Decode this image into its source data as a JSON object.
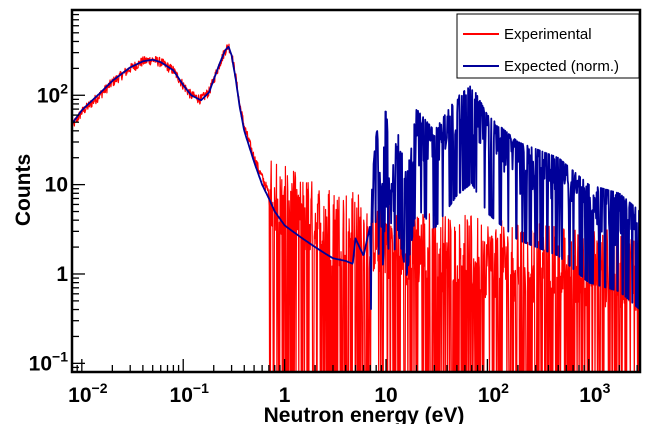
{
  "chart_data": {
    "type": "line",
    "title": "",
    "xlabel": "Neutron energy (eV)",
    "ylabel": "Counts",
    "xscale": "log",
    "yscale": "log",
    "xlim": [
      0.008,
      3200
    ],
    "ylim": [
      0.08,
      900
    ],
    "grid": false,
    "legend_position": "top-right",
    "x_ticks": [
      {
        "base": "10",
        "exp": "−2",
        "value": 0.01
      },
      {
        "base": "10",
        "exp": "−1",
        "value": 0.1
      },
      {
        "base": "1",
        "exp": "",
        "value": 1
      },
      {
        "base": "10",
        "exp": "",
        "value": 10
      },
      {
        "base": "10",
        "exp": "2",
        "value": 100
      },
      {
        "base": "10",
        "exp": "3",
        "value": 1000
      }
    ],
    "y_ticks": [
      {
        "base": "10",
        "exp": "−1",
        "value": 0.1
      },
      {
        "base": "1",
        "exp": "",
        "value": 1
      },
      {
        "base": "10",
        "exp": "",
        "value": 10
      },
      {
        "base": "10",
        "exp": "2",
        "value": 100
      }
    ],
    "series": [
      {
        "name": "Experimental",
        "color": "#ff0000",
        "style": "noisy-histogram",
        "x": [
          0.008,
          0.01,
          0.015,
          0.02,
          0.03,
          0.04,
          0.05,
          0.06,
          0.08,
          0.1,
          0.12,
          0.15,
          0.18,
          0.2,
          0.23,
          0.26,
          0.28,
          0.3,
          0.33,
          0.36,
          0.4,
          0.5,
          0.6,
          0.7,
          0.8,
          1.0,
          1.2,
          1.5,
          2.0,
          2.5,
          3.0,
          4.0,
          4.7,
          5.0,
          6.0,
          7.0,
          7.5,
          8.0,
          9.0,
          10.0,
          11.0,
          13.0,
          16.0,
          20.0,
          30.0,
          50.0,
          70.0,
          100.0,
          200.0,
          500.0,
          1000.0,
          2000.0,
          3200.0
        ],
        "y": [
          45,
          65,
          100,
          140,
          200,
          240,
          250,
          235,
          190,
          130,
          100,
          90,
          110,
          150,
          230,
          320,
          360,
          290,
          160,
          80,
          45,
          20,
          12,
          8,
          5,
          3.8,
          3.4,
          3.0,
          2.6,
          2.4,
          2.2,
          2.1,
          2.0,
          2.0,
          1.9,
          1.8,
          1.8,
          1.8,
          1.7,
          1.7,
          1.6,
          1.5,
          1.4,
          1.3,
          1.2,
          1.1,
          1.1,
          1.0,
          0.9,
          0.85,
          0.8,
          0.75,
          0.7
        ]
      },
      {
        "name": "Expected (norm.)",
        "color": "#000099",
        "style": "line",
        "x": [
          0.008,
          0.01,
          0.015,
          0.02,
          0.03,
          0.04,
          0.05,
          0.06,
          0.08,
          0.1,
          0.12,
          0.15,
          0.18,
          0.2,
          0.23,
          0.26,
          0.28,
          0.3,
          0.33,
          0.36,
          0.4,
          0.5,
          0.6,
          0.7,
          0.8,
          1.0,
          1.2,
          1.5,
          2.0,
          2.5,
          3.0,
          4.0,
          4.7,
          5.0,
          6.0,
          7.0,
          7.5,
          8.0,
          9.0,
          10.0,
          11.0,
          13.0,
          16.0,
          20.0,
          30.0,
          50.0,
          70.0,
          100.0,
          200.0,
          500.0,
          1000.0,
          2000.0,
          3200.0
        ],
        "y": [
          48,
          68,
          105,
          145,
          205,
          240,
          250,
          235,
          190,
          130,
          100,
          88,
          108,
          150,
          230,
          320,
          350,
          280,
          150,
          75,
          40,
          18,
          10,
          7,
          5,
          3.5,
          3.0,
          2.5,
          2.0,
          1.7,
          1.5,
          1.4,
          1.3,
          2.5,
          1.6,
          3.5,
          18,
          60,
          7,
          90,
          10,
          40,
          12,
          70,
          40,
          95,
          130,
          60,
          30,
          20,
          10,
          8,
          5
        ]
      }
    ]
  }
}
